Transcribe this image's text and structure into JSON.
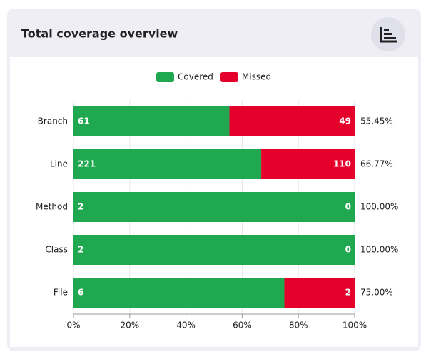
{
  "chart_data": {
    "type": "bar",
    "orientation": "horizontal",
    "stack": "percent",
    "title": "Total coverage overview",
    "categories": [
      "Branch",
      "Line",
      "Method",
      "Class",
      "File"
    ],
    "series": [
      {
        "name": "Covered",
        "color": "#1fa84f",
        "values": [
          61,
          221,
          2,
          2,
          6
        ]
      },
      {
        "name": "Missed",
        "color": "#e4002b",
        "values": [
          49,
          110,
          0,
          0,
          2
        ]
      }
    ],
    "coverage_labels": [
      "55.45%",
      "66.77%",
      "100.00%",
      "100.00%",
      "75.00%"
    ],
    "xlim": [
      0,
      100
    ],
    "xticks": [
      {
        "value": 0,
        "label": "0%"
      },
      {
        "value": 20,
        "label": "20%"
      },
      {
        "value": 40,
        "label": "40%"
      },
      {
        "value": 60,
        "label": "60%"
      },
      {
        "value": 80,
        "label": "80%"
      },
      {
        "value": 100,
        "label": "100%"
      }
    ],
    "grid": true,
    "legend": "top"
  }
}
